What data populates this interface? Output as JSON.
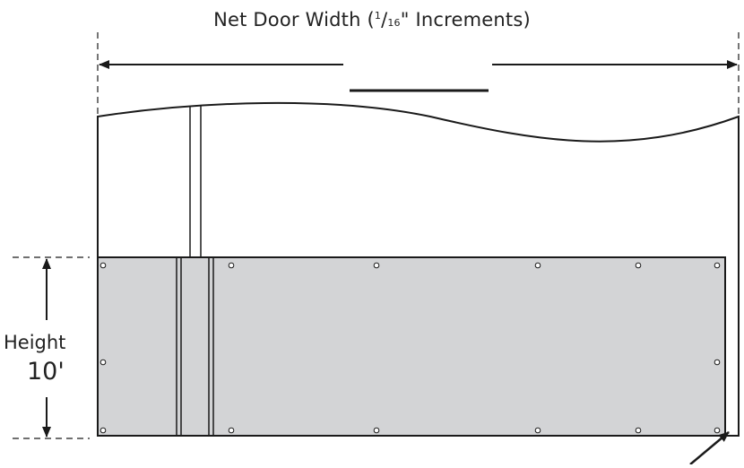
{
  "width_label": {
    "prefix": "Net Door Width (",
    "numerator": "1",
    "slash": "/",
    "denominator": "16",
    "suffix": "\" Increments)"
  },
  "height_label": {
    "word": "Height",
    "value": "10'"
  },
  "colors": {
    "panel_fill": "#d3d4d6",
    "line": "#1a1a1a",
    "background": "#ffffff"
  }
}
